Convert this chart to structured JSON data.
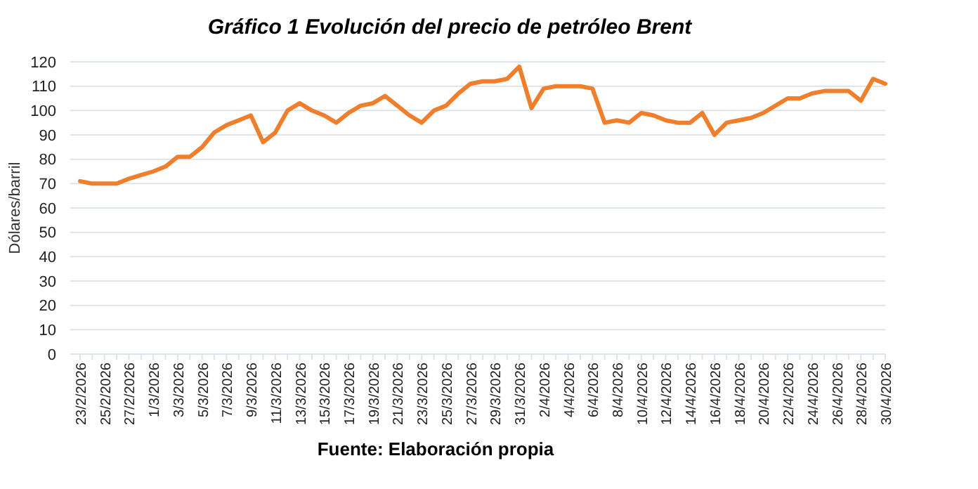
{
  "chart_data": {
    "type": "line",
    "title": "Gráfico 1 Evolución del precio de petróleo Brent",
    "ylabel": "Dólares/barril",
    "annotations": [
      "Fuente: Elaboración propia"
    ],
    "categories": [
      "23/2/2026",
      null,
      "25/2/2026",
      null,
      "27/2/2026",
      null,
      "1/3/2026",
      null,
      "3/3/2026",
      null,
      "5/3/2026",
      null,
      "7/3/2026",
      null,
      "9/3/2026",
      null,
      "11/3/2026",
      null,
      "13/3/2026",
      null,
      "15/3/2026",
      null,
      "17/3/2026",
      null,
      "19/3/2026",
      null,
      "21/3/2026",
      null,
      "23/3/2026",
      null,
      "25/3/2026",
      null,
      "27/3/2026",
      null,
      "29/3/2026",
      null,
      "31/3/2026",
      null,
      "2/4/2026",
      null,
      "4/4/2026",
      null,
      "6/4/2026",
      null,
      "8/4/2026",
      null,
      "10/4/2026",
      null,
      "12/4/2026",
      null,
      "14/4/2026",
      null,
      "16/4/2026",
      null,
      "18/4/2026",
      null,
      "20/4/2026",
      null,
      "22/4/2026",
      null,
      "24/4/2026",
      null,
      "26/4/2026",
      null,
      "28/4/2026",
      null,
      "30/4/2026"
    ],
    "series": [
      {
        "color": "#f07f2d",
        "values": [
          71,
          70,
          70,
          70,
          72,
          73.5,
          75,
          77,
          81,
          81,
          85,
          91,
          94,
          96,
          98,
          87,
          91,
          100,
          103,
          100,
          98,
          95,
          99,
          102,
          103,
          106,
          102,
          98,
          95,
          100,
          102,
          107,
          111,
          112,
          112,
          113,
          118,
          101,
          109,
          110,
          110,
          110,
          109,
          95,
          96,
          95,
          99,
          98,
          96,
          95,
          95,
          99,
          90,
          95,
          96,
          97,
          99,
          102,
          105,
          105,
          107,
          108,
          108,
          108,
          104,
          113,
          111
        ]
      }
    ],
    "ylim": [
      0,
      120
    ],
    "yticks": [
      0,
      10,
      20,
      30,
      40,
      50,
      60,
      70,
      80,
      90,
      100,
      110,
      120
    ],
    "grid": "y",
    "marker": "none",
    "line_style": "solid"
  }
}
